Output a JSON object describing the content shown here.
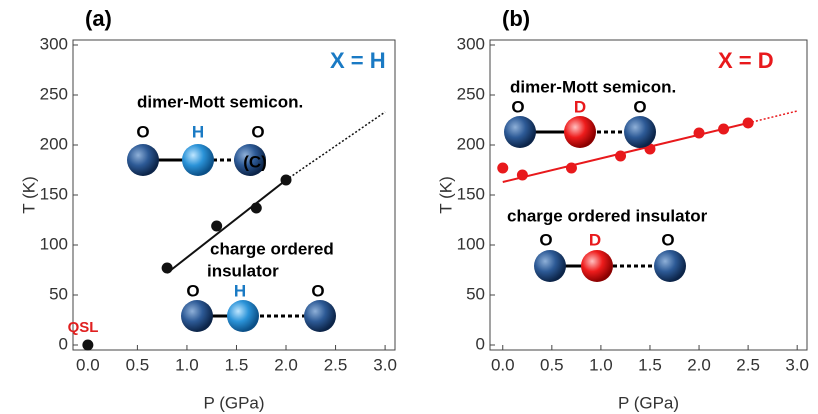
{
  "chart_data": [
    {
      "type": "scatter",
      "panel": "(a)",
      "xlabel": "P (GPa)",
      "ylabel": "T (K)",
      "xlim": [
        -0.15,
        3.1
      ],
      "ylim": [
        -5,
        305
      ],
      "xticks": [
        {
          "value": 0,
          "label": "0.0"
        },
        {
          "value": 0.5,
          "label": "0.5"
        },
        {
          "value": 1,
          "label": "1.0"
        },
        {
          "value": 1.5,
          "label": "1.5"
        },
        {
          "value": 2,
          "label": "2.0"
        },
        {
          "value": 2.5,
          "label": "2.5"
        },
        {
          "value": 3,
          "label": "3.0"
        }
      ],
      "yticks": [
        0,
        50,
        100,
        150,
        200,
        250,
        300
      ],
      "color": "#111111",
      "x": [
        0,
        0.8,
        1.3,
        1.7,
        2.0
      ],
      "values": [
        0,
        77,
        119,
        137,
        165
      ],
      "fit": {
        "x": [
          0.8,
          2.0
        ],
        "values": [
          72,
          165
        ]
      },
      "extrapolation": {
        "x": [
          2.0,
          3.0
        ],
        "values": [
          165,
          233
        ]
      },
      "annotations": [
        {
          "text": "X = H",
          "color": "#1a7ac4"
        },
        {
          "text": "dimer-Mott semicon.",
          "color": "#000000"
        },
        {
          "text": "O",
          "color": "#000000"
        },
        {
          "text": "H",
          "color": "#1a7ac4"
        },
        {
          "text": "O",
          "color": "#000000"
        },
        {
          "text": "(C)",
          "color": "#000000"
        },
        {
          "text": "charge ordered",
          "color": "#000000"
        },
        {
          "text": "insulator",
          "color": "#000000"
        },
        {
          "text": "O",
          "color": "#000000"
        },
        {
          "text": "H",
          "color": "#1a7ac4"
        },
        {
          "text": "O",
          "color": "#000000"
        },
        {
          "text": "QSL",
          "color": "#e02020"
        }
      ]
    },
    {
      "type": "scatter",
      "panel": "(b)",
      "xlabel": "P (GPa)",
      "ylabel": "T (K)",
      "xlim": [
        -0.13,
        3.1
      ],
      "ylim": [
        -5,
        305
      ],
      "xticks": [
        {
          "value": 0,
          "label": "0.0"
        },
        {
          "value": 0.5,
          "label": "0.5"
        },
        {
          "value": 1,
          "label": "1.0"
        },
        {
          "value": 1.5,
          "label": "1.5"
        },
        {
          "value": 2,
          "label": "2.0"
        },
        {
          "value": 2.5,
          "label": "2.5"
        },
        {
          "value": 3,
          "label": "3.0"
        }
      ],
      "yticks": [
        0,
        50,
        100,
        150,
        200,
        250,
        300
      ],
      "color": "#e8191c",
      "x": [
        0,
        0.2,
        0.7,
        1.2,
        1.5,
        2.0,
        2.25,
        2.5
      ],
      "values": [
        177,
        170,
        177,
        189,
        196,
        212,
        216,
        222
      ],
      "fit": {
        "x": [
          0,
          2.5
        ],
        "values": [
          163,
          222
        ]
      },
      "extrapolation": {
        "x": [
          2.5,
          3.0
        ],
        "values": [
          222,
          234
        ]
      },
      "annotations": [
        {
          "text": "X = D",
          "color": "#e8191c"
        },
        {
          "text": "dimer-Mott semicon.",
          "color": "#000000"
        },
        {
          "text": "O",
          "color": "#000000"
        },
        {
          "text": "D",
          "color": "#e8191c"
        },
        {
          "text": "O",
          "color": "#000000"
        },
        {
          "text": "charge ordered insulator",
          "color": "#000000"
        },
        {
          "text": "O",
          "color": "#000000"
        },
        {
          "text": "D",
          "color": "#e8191c"
        },
        {
          "text": "O",
          "color": "#000000"
        }
      ]
    }
  ]
}
